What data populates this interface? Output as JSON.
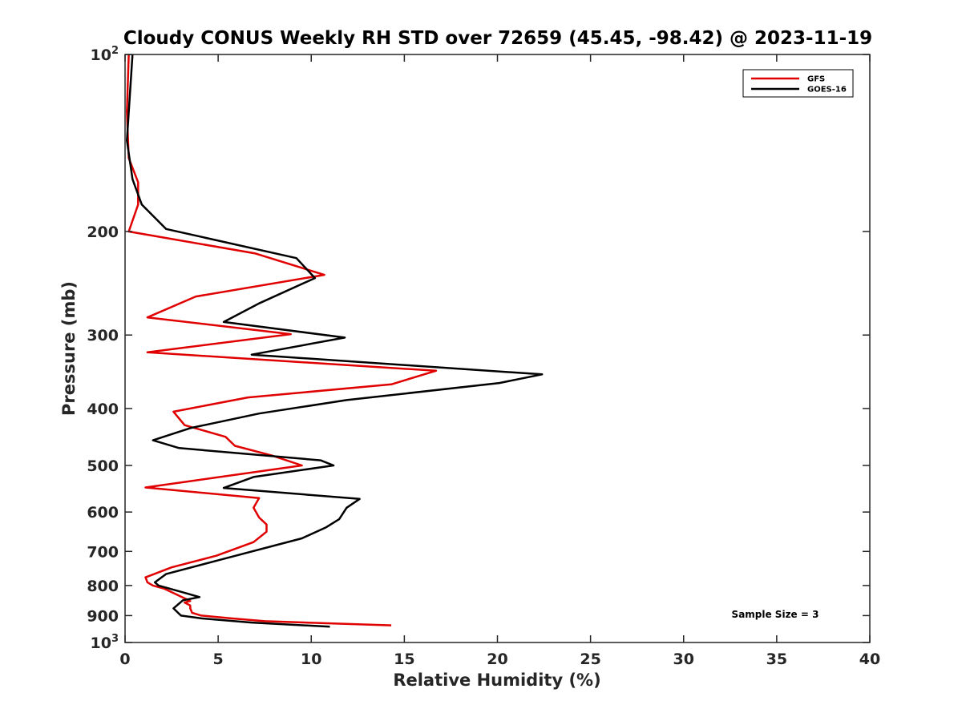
{
  "chart_data": {
    "type": "line",
    "title": "Cloudy CONUS Weekly RH STD over 72659 (45.45, -98.42) @ 2023-11-19",
    "xlabel": "Relative Humidity (%)",
    "ylabel": "Pressure (mb)",
    "xlim": [
      0,
      40
    ],
    "ylim": [
      100,
      1000
    ],
    "yscale": "log",
    "y_reversed": true,
    "x_ticks": [
      "0",
      "5",
      "10",
      "15",
      "20",
      "25",
      "30",
      "35",
      "40"
    ],
    "y_ticks": [
      {
        "value": 100,
        "base": "10",
        "exp": "2"
      },
      {
        "value": 200,
        "label": "200"
      },
      {
        "value": 300,
        "label": "300"
      },
      {
        "value": 400,
        "label": "400"
      },
      {
        "value": 500,
        "label": "500"
      },
      {
        "value": 600,
        "label": "600"
      },
      {
        "value": 700,
        "label": "700"
      },
      {
        "value": 800,
        "label": "800"
      },
      {
        "value": 900,
        "label": "900"
      },
      {
        "value": 1000,
        "base": "10",
        "exp": "3"
      }
    ],
    "grid": false,
    "legend_position": "top-right",
    "annotation": "Sample Size = 3",
    "series": [
      {
        "name": "GFS",
        "color": "#e00000",
        "points": [
          [
            0.2,
            100
          ],
          [
            0.1,
            125
          ],
          [
            0.2,
            150
          ],
          [
            0.7,
            165
          ],
          [
            0.7,
            180
          ],
          [
            0.2,
            200
          ],
          [
            7.0,
            218
          ],
          [
            10.7,
            237
          ],
          [
            3.8,
            258
          ],
          [
            1.2,
            280
          ],
          [
            8.9,
            299
          ],
          [
            1.2,
            321
          ],
          [
            16.7,
            345
          ],
          [
            14.3,
            364
          ],
          [
            6.6,
            383
          ],
          [
            2.6,
            405
          ],
          [
            3.2,
            427
          ],
          [
            5.4,
            447
          ],
          [
            5.9,
            463
          ],
          [
            7.9,
            481
          ],
          [
            9.5,
            500
          ],
          [
            1.1,
            545
          ],
          [
            7.2,
            568
          ],
          [
            6.9,
            590
          ],
          [
            7.2,
            613
          ],
          [
            7.6,
            630
          ],
          [
            7.6,
            648
          ],
          [
            6.9,
            675
          ],
          [
            4.9,
            712
          ],
          [
            2.5,
            745
          ],
          [
            1.1,
            775
          ],
          [
            1.2,
            790
          ],
          [
            1.5,
            800
          ],
          [
            2.1,
            810
          ],
          [
            3.5,
            850
          ],
          [
            3.2,
            855
          ],
          [
            3.5,
            865
          ],
          [
            3.5,
            875
          ],
          [
            3.6,
            890
          ],
          [
            4.1,
            900
          ],
          [
            5.7,
            910
          ],
          [
            7.5,
            920
          ],
          [
            14.3,
            935
          ]
        ]
      },
      {
        "name": "GOES-16",
        "color": "#000000",
        "points": [
          [
            0.4,
            100
          ],
          [
            0.1,
            140
          ],
          [
            0.4,
            163
          ],
          [
            0.9,
            180
          ],
          [
            2.2,
            198
          ],
          [
            9.2,
            222
          ],
          [
            10.2,
            240
          ],
          [
            7.2,
            265
          ],
          [
            5.3,
            285
          ],
          [
            11.8,
            303
          ],
          [
            6.8,
            324
          ],
          [
            22.4,
            350
          ],
          [
            20.1,
            362
          ],
          [
            11.9,
            387
          ],
          [
            7.2,
            408
          ],
          [
            3.5,
            432
          ],
          [
            1.5,
            453
          ],
          [
            2.9,
            467
          ],
          [
            10.5,
            490
          ],
          [
            11.2,
            500
          ],
          [
            6.9,
            523
          ],
          [
            5.3,
            546
          ],
          [
            12.6,
            570
          ],
          [
            11.9,
            590
          ],
          [
            11.5,
            617
          ],
          [
            10.8,
            637
          ],
          [
            9.5,
            665
          ],
          [
            5.2,
            722
          ],
          [
            2.2,
            765
          ],
          [
            1.6,
            790
          ],
          [
            1.8,
            800
          ],
          [
            3.0,
            820
          ],
          [
            4.0,
            837
          ],
          [
            3.1,
            848
          ],
          [
            2.6,
            875
          ],
          [
            3.0,
            900
          ],
          [
            4.1,
            910
          ],
          [
            6.8,
            925
          ],
          [
            11.0,
            940
          ]
        ]
      }
    ]
  }
}
